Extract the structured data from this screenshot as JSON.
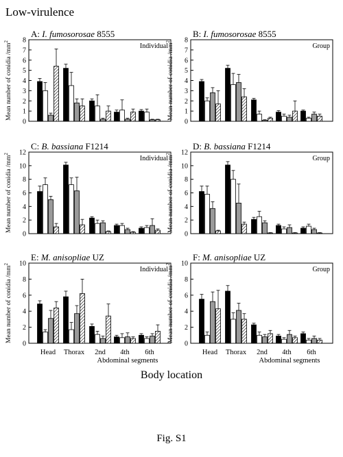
{
  "figure": {
    "title": "Low-virulence",
    "xlabel": "Body location",
    "caption": "Fig. S1",
    "ylabel": "Mean number of conidia /mm",
    "ylabel_sup": "2",
    "x_tick_labels": [
      "Head",
      "Thorax",
      "2nd",
      "4th",
      "6th"
    ],
    "x_group_label": "Abdominal segments"
  },
  "legend_fills": [
    "solid-black",
    "white",
    "gray",
    "hatched"
  ],
  "colors": {
    "bar_black": "#000000",
    "bar_white": "#ffffff",
    "bar_gray": "#9a9a9a",
    "hatch": "#000000"
  },
  "chart_data": [
    {
      "id": "A",
      "type": "bar",
      "label_prefix": "A:",
      "species": "I. fumosorosae",
      "strain": "8555",
      "tag": "Individual",
      "categories": [
        "Head",
        "Thorax",
        "2nd",
        "4th",
        "6th"
      ],
      "ylim": [
        0,
        8
      ],
      "yticks": [
        0,
        1,
        2,
        3,
        4,
        5,
        6,
        7,
        8
      ],
      "series": [
        {
          "fill": "black",
          "values": [
            3.9,
            5.2,
            2.0,
            0.9,
            1.0
          ],
          "errors": [
            0.3,
            0.4,
            0.2,
            0.2,
            0.15
          ]
        },
        {
          "fill": "white",
          "values": [
            3.0,
            3.5,
            1.5,
            1.1,
            0.9
          ],
          "errors": [
            0.8,
            1.3,
            1.1,
            1.0,
            0.3
          ]
        },
        {
          "fill": "gray",
          "values": [
            0.6,
            1.8,
            0.2,
            0.2,
            0.15
          ],
          "errors": [
            0.2,
            0.4,
            0.1,
            0.1,
            0.05
          ]
        },
        {
          "fill": "hatched",
          "values": [
            5.4,
            1.5,
            1.0,
            0.9,
            0.15
          ],
          "errors": [
            1.7,
            0.7,
            0.5,
            0.3,
            0.05
          ]
        }
      ]
    },
    {
      "id": "B",
      "type": "bar",
      "label_prefix": "B:",
      "species": "I. fumosorosae",
      "strain": "8555",
      "tag": "Group",
      "categories": [
        "Head",
        "Thorax",
        "2nd",
        "4th",
        "6th"
      ],
      "ylim": [
        0,
        8
      ],
      "yticks": [
        0,
        1,
        2,
        3,
        4,
        5,
        6,
        7,
        8
      ],
      "series": [
        {
          "fill": "black",
          "values": [
            3.9,
            5.2,
            2.1,
            0.9,
            1.0
          ],
          "errors": [
            0.2,
            0.3,
            0.15,
            0.15,
            0.1
          ]
        },
        {
          "fill": "white",
          "values": [
            2.0,
            3.6,
            0.7,
            0.5,
            0.3
          ],
          "errors": [
            0.3,
            1.1,
            0.3,
            0.2,
            0.1
          ]
        },
        {
          "fill": "gray",
          "values": [
            2.8,
            3.8,
            0.1,
            0.4,
            0.7
          ],
          "errors": [
            0.5,
            0.8,
            0.05,
            0.2,
            0.2
          ]
        },
        {
          "fill": "hatched",
          "values": [
            1.7,
            2.4,
            0.3,
            1.0,
            0.5
          ],
          "errors": [
            1.3,
            0.8,
            0.1,
            1.0,
            0.2
          ]
        }
      ]
    },
    {
      "id": "C",
      "type": "bar",
      "label_prefix": "C:",
      "species": "B. bassiana",
      "strain": "F1214",
      "tag": "Individual",
      "categories": [
        "Head",
        "Thorax",
        "2nd",
        "4th",
        "6th"
      ],
      "ylim": [
        0,
        12
      ],
      "yticks": [
        0,
        2,
        4,
        6,
        8,
        10,
        12
      ],
      "series": [
        {
          "fill": "black",
          "values": [
            6.2,
            10.1,
            2.3,
            1.2,
            0.8
          ],
          "errors": [
            0.8,
            0.4,
            0.2,
            0.2,
            0.2
          ]
        },
        {
          "fill": "white",
          "values": [
            7.2,
            7.2,
            1.5,
            1.2,
            0.9
          ],
          "errors": [
            1.0,
            1.0,
            0.5,
            0.3,
            0.3
          ]
        },
        {
          "fill": "gray",
          "values": [
            5.0,
            6.3,
            1.6,
            0.6,
            1.2
          ],
          "errors": [
            0.5,
            2.0,
            0.3,
            0.2,
            1.0
          ]
        },
        {
          "fill": "hatched",
          "values": [
            1.0,
            1.3,
            0.3,
            0.2,
            0.5
          ],
          "errors": [
            0.5,
            0.8,
            0.1,
            0.1,
            0.2
          ]
        }
      ]
    },
    {
      "id": "D",
      "type": "bar",
      "label_prefix": "D:",
      "species": "B. bassiana",
      "strain": "F1214",
      "tag": "Group",
      "categories": [
        "Head",
        "Thorax",
        "2nd",
        "4th",
        "6th"
      ],
      "ylim": [
        0,
        12
      ],
      "yticks": [
        0,
        2,
        4,
        6,
        8,
        10,
        12
      ],
      "series": [
        {
          "fill": "black",
          "values": [
            6.2,
            10.1,
            2.1,
            1.2,
            0.8
          ],
          "errors": [
            0.8,
            0.5,
            0.3,
            0.2,
            0.2
          ]
        },
        {
          "fill": "white",
          "values": [
            5.8,
            8.0,
            2.5,
            0.7,
            1.1
          ],
          "errors": [
            1.2,
            1.3,
            0.8,
            0.3,
            0.3
          ]
        },
        {
          "fill": "gray",
          "values": [
            3.7,
            4.5,
            1.6,
            0.9,
            0.6
          ],
          "errors": [
            1.0,
            2.8,
            0.3,
            0.4,
            0.2
          ]
        },
        {
          "fill": "hatched",
          "values": [
            0.4,
            1.4,
            0.1,
            0.1,
            0.1
          ],
          "errors": [
            0.1,
            0.3,
            0.05,
            0.05,
            0.05
          ]
        }
      ]
    },
    {
      "id": "E",
      "type": "bar",
      "label_prefix": "E:",
      "species": "M. anisopliae",
      "strain": "UZ",
      "tag": "Individual",
      "categories": [
        "Head",
        "Thorax",
        "2nd",
        "4th",
        "6th"
      ],
      "ylim": [
        0,
        10
      ],
      "yticks": [
        0,
        2,
        4,
        6,
        8,
        10
      ],
      "series": [
        {
          "fill": "black",
          "values": [
            4.9,
            5.8,
            2.1,
            0.8,
            1.0
          ],
          "errors": [
            0.4,
            0.7,
            0.3,
            0.2,
            0.2
          ]
        },
        {
          "fill": "white",
          "values": [
            1.4,
            1.7,
            1.1,
            0.7,
            0.6
          ],
          "errors": [
            0.3,
            0.9,
            0.4,
            0.5,
            0.2
          ]
        },
        {
          "fill": "gray",
          "values": [
            3.1,
            3.7,
            0.6,
            0.8,
            0.9
          ],
          "errors": [
            1.0,
            1.0,
            0.3,
            0.5,
            0.3
          ]
        },
        {
          "fill": "hatched",
          "values": [
            4.4,
            6.2,
            3.4,
            0.6,
            1.5
          ],
          "errors": [
            0.8,
            1.8,
            1.5,
            0.2,
            0.8
          ]
        }
      ]
    },
    {
      "id": "F",
      "type": "bar",
      "label_prefix": "F:",
      "species": "M. anisopliae",
      "strain": "UZ",
      "tag": "Group",
      "categories": [
        "Head",
        "Thorax",
        "2nd",
        "4th",
        "6th"
      ],
      "ylim": [
        0,
        10
      ],
      "yticks": [
        0,
        2,
        4,
        6,
        8,
        10
      ],
      "series": [
        {
          "fill": "black",
          "values": [
            5.5,
            6.5,
            2.3,
            0.9,
            1.2
          ],
          "errors": [
            0.6,
            0.7,
            0.2,
            0.2,
            0.2
          ]
        },
        {
          "fill": "white",
          "values": [
            1.0,
            3.0,
            1.0,
            0.5,
            0.4
          ],
          "errors": [
            0.4,
            0.8,
            0.4,
            0.2,
            0.2
          ]
        },
        {
          "fill": "gray",
          "values": [
            5.2,
            4.1,
            0.8,
            1.1,
            0.6
          ],
          "errors": [
            1.2,
            0.9,
            0.3,
            0.5,
            0.3
          ]
        },
        {
          "fill": "hatched",
          "values": [
            4.3,
            3.0,
            1.2,
            0.7,
            0.4
          ],
          "errors": [
            2.3,
            0.7,
            0.4,
            0.2,
            0.2
          ]
        }
      ]
    }
  ]
}
